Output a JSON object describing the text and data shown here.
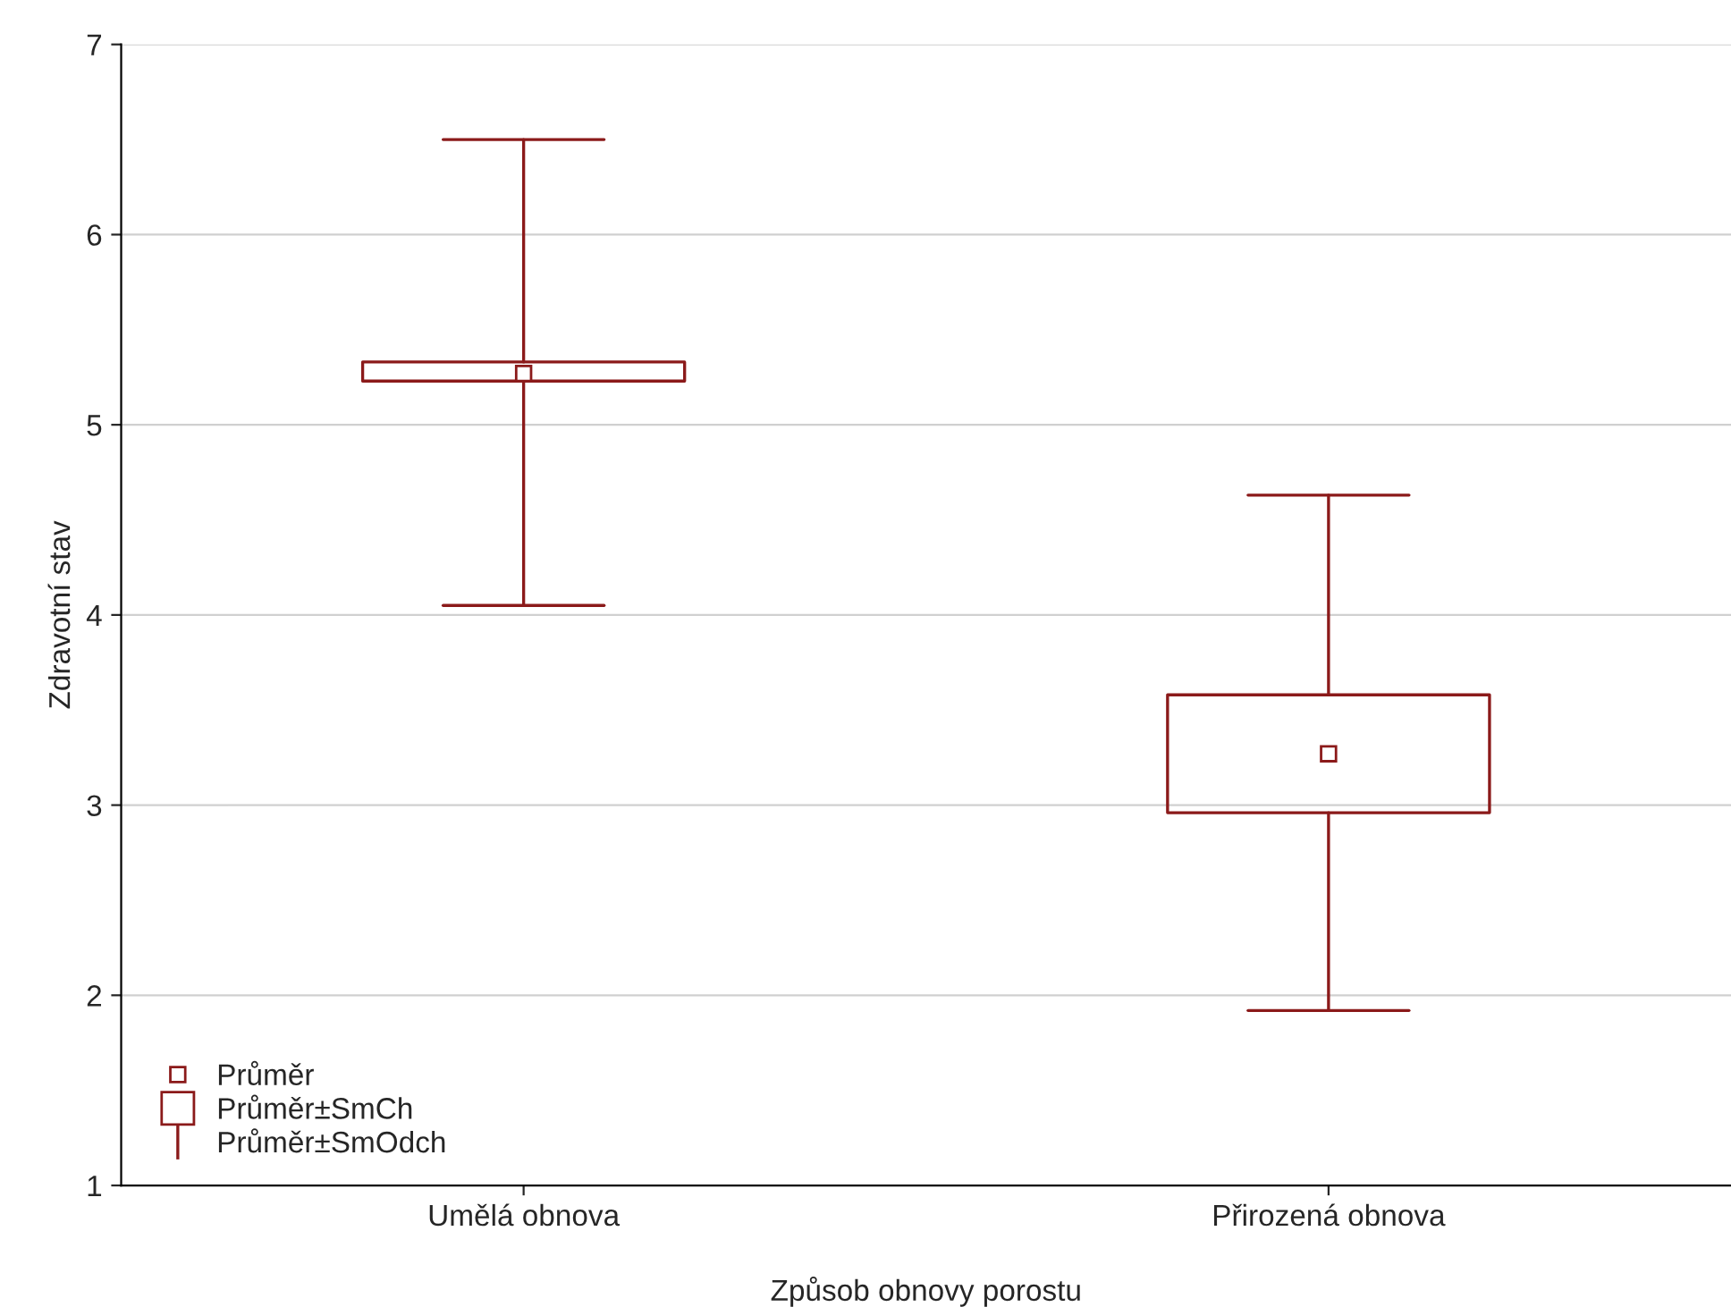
{
  "chart_data": {
    "type": "box",
    "xlabel": "Způsob obnovy porostu",
    "ylabel": "Zdravotní stav",
    "categories": [
      "Umělá obnova",
      "Přirozená obnova"
    ],
    "boxes": [
      {
        "low": 4.05,
        "q1": 5.23,
        "mean": 5.27,
        "q3": 5.33,
        "high": 6.5
      },
      {
        "low": 1.92,
        "q1": 2.96,
        "mean": 3.27,
        "q3": 3.58,
        "high": 4.63
      }
    ],
    "color": "#8b1a1a",
    "ylim": [
      1,
      7
    ],
    "yticks": [
      1,
      2,
      3,
      4,
      5,
      6,
      7
    ],
    "grid": "y",
    "annotations": [
      "Průměr",
      "Průměr±SmCh",
      "Průměr±SmOdch"
    ]
  }
}
